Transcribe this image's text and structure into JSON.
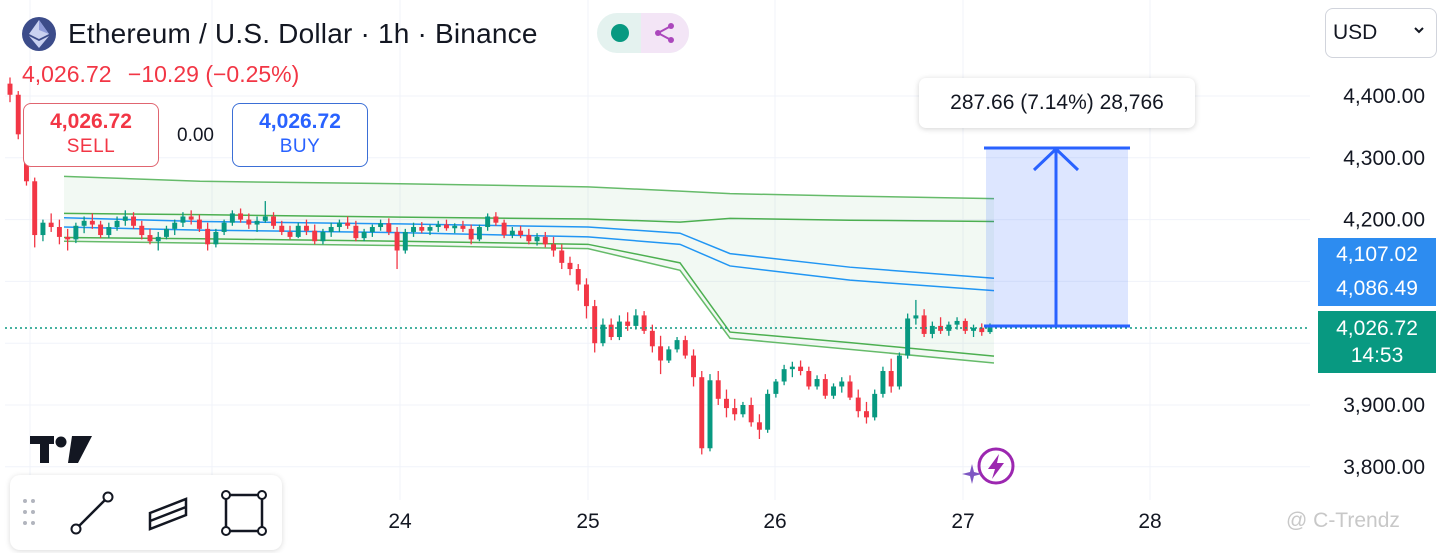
{
  "header": {
    "title": "Ethereum / U.S. Dollar · 1h · Binance",
    "icon": "ethereum-icon",
    "status_color": "#089981",
    "share_color": "#ab47bc"
  },
  "price_line": {
    "price": "4,026.72",
    "change": "−10.29",
    "change_pct": "(−0.25%)",
    "color": "#f23645"
  },
  "trade": {
    "sell_price": "4,026.72",
    "sell_label": "SELL",
    "spread": "0.00",
    "buy_price": "4,026.72",
    "buy_label": "BUY"
  },
  "currency": {
    "value": "USD"
  },
  "measure": {
    "label": "287.66 (7.14%) 28,766"
  },
  "price_tags": {
    "upper_band": "4,107.02",
    "lower_band": "4,086.49",
    "last_price": "4,026.72",
    "countdown": "14:53"
  },
  "toolbar": {
    "tools": [
      "trend-line-tool",
      "parallel-channel-tool",
      "rectangle-tool"
    ]
  },
  "watermark": "@ C-Trendz",
  "chart_data": {
    "type": "candlestick",
    "symbol": "ETHUSD",
    "interval": "1h",
    "exchange": "Binance",
    "x_ticks": [
      "24",
      "25",
      "26",
      "27",
      "28"
    ],
    "y_ticks": [
      "4,400.00",
      "4,300.00",
      "4,200.00",
      "3,900.00",
      "3,800.00"
    ],
    "ylim": [
      3780,
      4460
    ],
    "last_price": 4026.72,
    "measure": {
      "from": 4026.72,
      "to": 4314.38,
      "change": 287.66,
      "pct": 7.14,
      "bars": "28,766"
    },
    "bands": {
      "outer_upper": [
        4270,
        4262,
        4258,
        4253,
        4246,
        4242,
        4238,
        4234
      ],
      "inner_upper": [
        4210,
        4208,
        4204,
        4201,
        4196,
        4202,
        4199,
        4197
      ],
      "blue_upper": [
        4203,
        4197,
        4193,
        4188,
        4178,
        4145,
        4123,
        4105
      ],
      "blue_lower": [
        4188,
        4183,
        4179,
        4172,
        4160,
        4125,
        4102,
        4085
      ],
      "inner_lower": [
        4171,
        4169,
        4165,
        4160,
        4130,
        4018,
        4001,
        3979
      ],
      "outer_lower": [
        4165,
        4162,
        4158,
        4153,
        4118,
        4008,
        3990,
        3968
      ]
    },
    "candles": [
      [
        4420,
        4430,
        4390,
        4402
      ],
      [
        4402,
        4408,
        4330,
        4338
      ],
      [
        4338,
        4345,
        4255,
        4262
      ],
      [
        4262,
        4268,
        4155,
        4175
      ],
      [
        4175,
        4200,
        4165,
        4195
      ],
      [
        4195,
        4210,
        4180,
        4188
      ],
      [
        4188,
        4200,
        4160,
        4172
      ],
      [
        4172,
        4185,
        4150,
        4168
      ],
      [
        4168,
        4195,
        4162,
        4190
      ],
      [
        4190,
        4205,
        4178,
        4198
      ],
      [
        4198,
        4210,
        4185,
        4192
      ],
      [
        4192,
        4198,
        4170,
        4175
      ],
      [
        4175,
        4195,
        4170,
        4188
      ],
      [
        4188,
        4205,
        4182,
        4198
      ],
      [
        4198,
        4215,
        4190,
        4205
      ],
      [
        4205,
        4212,
        4185,
        4190
      ],
      [
        4190,
        4198,
        4168,
        4175
      ],
      [
        4175,
        4185,
        4160,
        4165
      ],
      [
        4165,
        4180,
        4150,
        4172
      ],
      [
        4172,
        4190,
        4168,
        4185
      ],
      [
        4185,
        4200,
        4175,
        4195
      ],
      [
        4195,
        4212,
        4188,
        4205
      ],
      [
        4205,
        4215,
        4192,
        4200
      ],
      [
        4200,
        4208,
        4180,
        4185
      ],
      [
        4185,
        4195,
        4150,
        4160
      ],
      [
        4160,
        4185,
        4155,
        4180
      ],
      [
        4180,
        4200,
        4175,
        4195
      ],
      [
        4195,
        4215,
        4190,
        4210
      ],
      [
        4210,
        4218,
        4195,
        4200
      ],
      [
        4200,
        4210,
        4185,
        4192
      ],
      [
        4192,
        4205,
        4180,
        4198
      ],
      [
        4198,
        4230,
        4195,
        4205
      ],
      [
        4205,
        4212,
        4185,
        4190
      ],
      [
        4190,
        4198,
        4175,
        4180
      ],
      [
        4180,
        4190,
        4168,
        4172
      ],
      [
        4172,
        4195,
        4170,
        4190
      ],
      [
        4190,
        4200,
        4175,
        4182
      ],
      [
        4182,
        4192,
        4160,
        4165
      ],
      [
        4165,
        4185,
        4160,
        4180
      ],
      [
        4180,
        4195,
        4172,
        4188
      ],
      [
        4188,
        4200,
        4180,
        4195
      ],
      [
        4195,
        4205,
        4185,
        4190
      ],
      [
        4190,
        4198,
        4165,
        4170
      ],
      [
        4170,
        4185,
        4165,
        4180
      ],
      [
        4180,
        4192,
        4172,
        4188
      ],
      [
        4188,
        4200,
        4182,
        4194
      ],
      [
        4194,
        4202,
        4175,
        4180
      ],
      [
        4180,
        4188,
        4120,
        4150
      ],
      [
        4150,
        4185,
        4145,
        4180
      ],
      [
        4180,
        4195,
        4172,
        4188
      ],
      [
        4188,
        4196,
        4178,
        4182
      ],
      [
        4182,
        4192,
        4175,
        4188
      ],
      [
        4188,
        4198,
        4180,
        4192
      ],
      [
        4192,
        4200,
        4182,
        4186
      ],
      [
        4186,
        4194,
        4178,
        4190
      ],
      [
        4190,
        4198,
        4180,
        4185
      ],
      [
        4185,
        4192,
        4160,
        4168
      ],
      [
        4168,
        4192,
        4165,
        4188
      ],
      [
        4188,
        4210,
        4182,
        4205
      ],
      [
        4205,
        4212,
        4190,
        4195
      ],
      [
        4195,
        4200,
        4170,
        4175
      ],
      [
        4175,
        4188,
        4170,
        4182
      ],
      [
        4182,
        4190,
        4170,
        4175
      ],
      [
        4175,
        4185,
        4160,
        4165
      ],
      [
        4165,
        4178,
        4158,
        4172
      ],
      [
        4172,
        4180,
        4155,
        4160
      ],
      [
        4160,
        4172,
        4140,
        4150
      ],
      [
        4150,
        4160,
        4120,
        4130
      ],
      [
        4130,
        4140,
        4110,
        4120
      ],
      [
        4120,
        4128,
        4085,
        4095
      ],
      [
        4095,
        4105,
        4040,
        4060
      ],
      [
        4060,
        4070,
        3985,
        4000
      ],
      [
        4000,
        4040,
        3995,
        4030
      ],
      [
        4030,
        4040,
        4005,
        4010
      ],
      [
        4010,
        4045,
        4005,
        4035
      ],
      [
        4035,
        4050,
        4020,
        4028
      ],
      [
        4028,
        4055,
        4022,
        4045
      ],
      [
        4045,
        4052,
        4015,
        4020
      ],
      [
        4020,
        4030,
        3985,
        3995
      ],
      [
        3995,
        4012,
        3950,
        3972
      ],
      [
        3972,
        3995,
        3968,
        3990
      ],
      [
        3990,
        4010,
        3985,
        4005
      ],
      [
        4005,
        4012,
        3975,
        3980
      ],
      [
        3980,
        3990,
        3930,
        3945
      ],
      [
        3945,
        3955,
        3820,
        3830
      ],
      [
        3830,
        3950,
        3825,
        3940
      ],
      [
        3940,
        3955,
        3900,
        3910
      ],
      [
        3910,
        3925,
        3880,
        3895
      ],
      [
        3895,
        3910,
        3875,
        3885
      ],
      [
        3885,
        3905,
        3880,
        3900
      ],
      [
        3900,
        3912,
        3865,
        3872
      ],
      [
        3872,
        3885,
        3845,
        3860
      ],
      [
        3860,
        3925,
        3855,
        3918
      ],
      [
        3918,
        3942,
        3912,
        3938
      ],
      [
        3938,
        3965,
        3932,
        3958
      ],
      [
        3958,
        3970,
        3945,
        3962
      ],
      [
        3962,
        3972,
        3948,
        3955
      ],
      [
        3955,
        3962,
        3925,
        3930
      ],
      [
        3930,
        3948,
        3925,
        3942
      ],
      [
        3942,
        3950,
        3910,
        3915
      ],
      [
        3915,
        3935,
        3910,
        3930
      ],
      [
        3930,
        3945,
        3920,
        3938
      ],
      [
        3938,
        3948,
        3908,
        3912
      ],
      [
        3912,
        3925,
        3880,
        3890
      ],
      [
        3890,
        3905,
        3870,
        3880
      ],
      [
        3880,
        3925,
        3875,
        3918
      ],
      [
        3918,
        3962,
        3912,
        3955
      ],
      [
        3955,
        3975,
        3920,
        3930
      ],
      [
        3930,
        3985,
        3925,
        3980
      ],
      [
        3980,
        4048,
        3975,
        4040
      ],
      [
        4040,
        4070,
        4030,
        4045
      ],
      [
        4045,
        4055,
        4010,
        4015
      ],
      [
        4015,
        4035,
        4008,
        4028
      ],
      [
        4028,
        4042,
        4015,
        4020
      ],
      [
        4020,
        4035,
        4012,
        4030
      ],
      [
        4030,
        4042,
        4022,
        4036
      ],
      [
        4036,
        4040,
        4015,
        4020
      ],
      [
        4020,
        4030,
        4010,
        4025
      ],
      [
        4025,
        4032,
        4012,
        4018
      ],
      [
        4018,
        4032,
        4015,
        4027
      ]
    ]
  }
}
